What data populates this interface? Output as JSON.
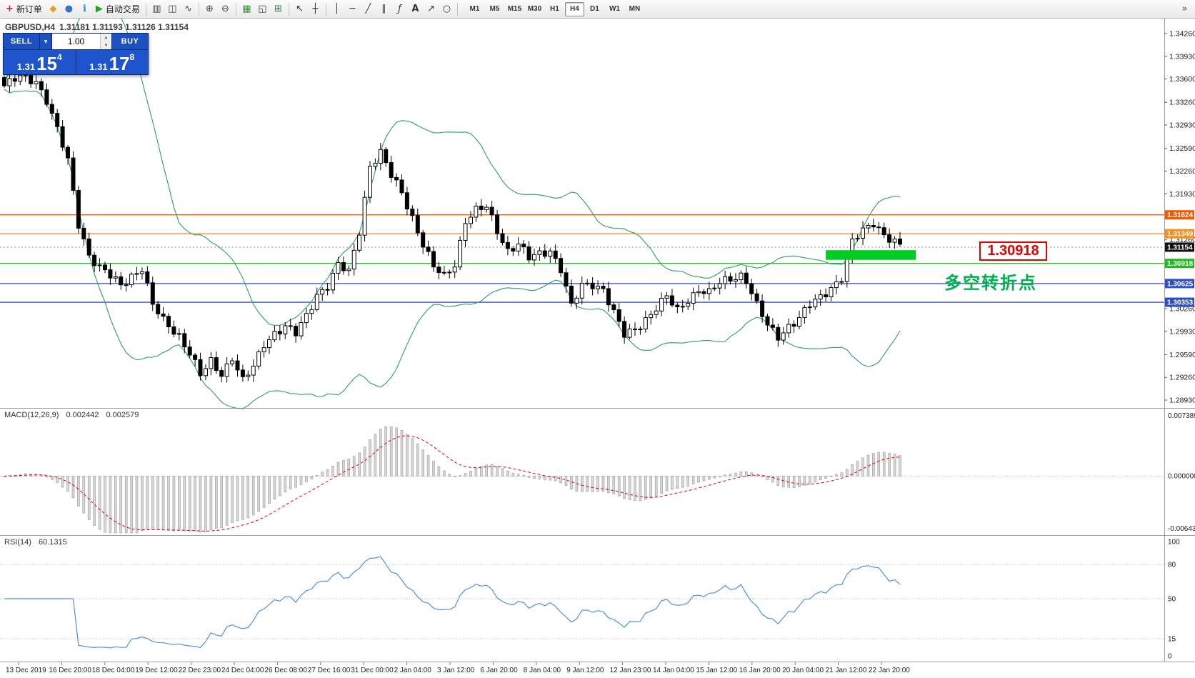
{
  "toolbar": {
    "new_order_label": "新订单",
    "auto_trading_label": "自动交易",
    "timeframes": [
      "M1",
      "M5",
      "M15",
      "M30",
      "H1",
      "H4",
      "D1",
      "W1",
      "MN"
    ],
    "active_timeframe": "H4"
  },
  "icons": {
    "new_order": "+",
    "symbols": "◆",
    "profiles": "●",
    "info": "ℹ",
    "auto_trading_play": "▶",
    "bar_chart": "▥",
    "candle_chart": "◫",
    "line_chart": "∿",
    "zoom_in": "⊕",
    "zoom_out": "⊖",
    "grid": "▦",
    "tile_windows": "◱",
    "indicators": "⊞",
    "cursor": "↖",
    "crosshair": "┼",
    "vertical_line": "│",
    "horizontal_line": "─",
    "trendline": "╱",
    "channel": "∥",
    "fibonacci": "ƒ",
    "text_tool": "A",
    "arrow_tool": "↗",
    "shapes": "○",
    "scroll_end": "»",
    "dropdown": "▾",
    "spin_up": "▲",
    "spin_down": "▼"
  },
  "symbol_header": {
    "symbol": "GBPUSD,H4",
    "ohlc": "1.31181 1.31193 1.31126 1.31154"
  },
  "trade_panel": {
    "sell_label": "SELL",
    "buy_label": "BUY",
    "volume": "1.00",
    "bid_prefix": "1.31",
    "bid_main": "15",
    "bid_sup": "4",
    "ask_prefix": "1.31",
    "ask_main": "17",
    "ask_sup": "8"
  },
  "annotations": {
    "price_box": "1.30918",
    "turning_point": "多空转折点"
  },
  "chart_data": {
    "type": "candlestick",
    "symbol": "GBPUSD",
    "timeframe": "H4",
    "candle_count": 170,
    "close_keyframes": [
      [
        0,
        1.335
      ],
      [
        3,
        1.3362
      ],
      [
        6,
        1.3358
      ],
      [
        8,
        1.333
      ],
      [
        10,
        1.3285
      ],
      [
        12,
        1.324
      ],
      [
        14,
        1.315
      ],
      [
        16,
        1.3105
      ],
      [
        18,
        1.3085
      ],
      [
        20,
        1.3072
      ],
      [
        22,
        1.306
      ],
      [
        24,
        1.3075
      ],
      [
        26,
        1.3085
      ],
      [
        28,
        1.303
      ],
      [
        30,
        1.3008
      ],
      [
        33,
        1.2988
      ],
      [
        35,
        1.2962
      ],
      [
        37,
        1.2928
      ],
      [
        39,
        1.2948
      ],
      [
        41,
        1.2932
      ],
      [
        43,
        1.2956
      ],
      [
        45,
        1.292
      ],
      [
        47,
        1.294
      ],
      [
        49,
        1.2975
      ],
      [
        51,
        1.2992
      ],
      [
        53,
        1.3
      ],
      [
        55,
        1.2988
      ],
      [
        57,
        1.3015
      ],
      [
        59,
        1.3048
      ],
      [
        61,
        1.306
      ],
      [
        63,
        1.3088
      ],
      [
        65,
        1.3078
      ],
      [
        67,
        1.314
      ],
      [
        69,
        1.3235
      ],
      [
        71,
        1.3252
      ],
      [
        73,
        1.3218
      ],
      [
        75,
        1.3195
      ],
      [
        77,
        1.316
      ],
      [
        79,
        1.312
      ],
      [
        81,
        1.3085
      ],
      [
        83,
        1.3072
      ],
      [
        85,
        1.3092
      ],
      [
        87,
        1.3155
      ],
      [
        89,
        1.3168
      ],
      [
        91,
        1.3172
      ],
      [
        93,
        1.314
      ],
      [
        95,
        1.3112
      ],
      [
        97,
        1.312
      ],
      [
        99,
        1.3098
      ],
      [
        101,
        1.3105
      ],
      [
        103,
        1.3112
      ],
      [
        105,
        1.3085
      ],
      [
        107,
        1.3028
      ],
      [
        109,
        1.3058
      ],
      [
        111,
        1.3062
      ],
      [
        113,
        1.3056
      ],
      [
        115,
        1.302
      ],
      [
        117,
        1.2986
      ],
      [
        119,
        1.2995
      ],
      [
        121,
        1.3012
      ],
      [
        123,
        1.3028
      ],
      [
        125,
        1.3042
      ],
      [
        127,
        1.3022
      ],
      [
        129,
        1.304
      ],
      [
        131,
        1.3055
      ],
      [
        133,
        1.3048
      ],
      [
        135,
        1.3062
      ],
      [
        137,
        1.307
      ],
      [
        139,
        1.3076
      ],
      [
        140,
        1.3068
      ],
      [
        142,
        1.303
      ],
      [
        144,
        1.3
      ],
      [
        146,
        1.2986
      ],
      [
        148,
        1.3002
      ],
      [
        150,
        1.3012
      ],
      [
        152,
        1.303
      ],
      [
        154,
        1.3042
      ],
      [
        156,
        1.3058
      ],
      [
        158,
        1.3072
      ],
      [
        160,
        1.3122
      ],
      [
        162,
        1.3138
      ],
      [
        164,
        1.3152
      ],
      [
        166,
        1.3135
      ],
      [
        168,
        1.3122
      ],
      [
        169,
        1.3116
      ]
    ],
    "price_axis": {
      "max_tick": 1.3426,
      "min_tick": 1.2893,
      "ticks": [
        "1.34260",
        "1.33930",
        "1.33600",
        "1.33260",
        "1.32930",
        "1.32590",
        "1.32260",
        "1.31930",
        "1.31260",
        "1.30260",
        "1.29930",
        "1.29590",
        "1.29260",
        "1.28930"
      ]
    },
    "hlines": [
      {
        "price": 1.31624,
        "label": "1.31624",
        "color": "#f05a00"
      },
      {
        "price": 1.31349,
        "label": "1.31349",
        "color": "#f78d1e"
      },
      {
        "price": 1.31154,
        "label": "1.31154",
        "color": "#111111",
        "style": "current"
      },
      {
        "price": 1.30918,
        "label": "1.30918",
        "color": "#22bb22"
      },
      {
        "price": 1.30625,
        "label": "1.30625",
        "color": "#2e4fc4"
      },
      {
        "price": 1.30353,
        "label": "1.30353",
        "color": "#2e4fc4"
      }
    ],
    "highlight_rect": {
      "start_index": 155,
      "end_index": 172,
      "price_top": 1.3111,
      "price_bottom": 1.3097,
      "color": "#00cc22"
    },
    "bollinger": {
      "period": 20,
      "deviation": 2
    },
    "macd": {
      "label": "MACD(12,26,9)",
      "value_main": "0.002442",
      "value_signal": "0.002579",
      "axis_top": "0.007389",
      "axis_zero": "0.000000",
      "axis_bottom": "-0.006439",
      "fast": 12,
      "slow": 26,
      "signal_period": 9
    },
    "rsi": {
      "label": "RSI(14)",
      "value": "60.1315",
      "period": 14,
      "levels": [
        80,
        50,
        15
      ],
      "axis_labels": [
        "100",
        "80",
        "50",
        "15",
        "0"
      ]
    },
    "time_labels": [
      "13 Dec 2019",
      "16 Dec 20:00",
      "18 Dec 04:00",
      "19 Dec 12:00",
      "22 Dec 23:00",
      "24 Dec 04:00",
      "26 Dec 08:00",
      "27 Dec 16:00",
      "31 Dec 00:00",
      "2 Jan 04:00",
      "3 Jan 12:00",
      "6 Jan 20:00",
      "8 Jan 04:00",
      "9 Jan 12:00",
      "12 Jan 23:00",
      "14 Jan 04:00",
      "15 Jan 12:00",
      "16 Jan 20:00",
      "20 Jan 04:00",
      "21 Jan 12:00",
      "22 Jan 20:00"
    ],
    "colors": {
      "bollinger": "#2e9e63",
      "bull": "#ffffff",
      "bear": "#000000",
      "wick": "#000000",
      "macd_hist_fill": "#d6d6d6",
      "macd_hist_stroke": "#9a9a9a",
      "macd_signal": "#e00000",
      "rsi_line": "#4f8fe6",
      "level_dotted": "#b5b5b5"
    }
  }
}
